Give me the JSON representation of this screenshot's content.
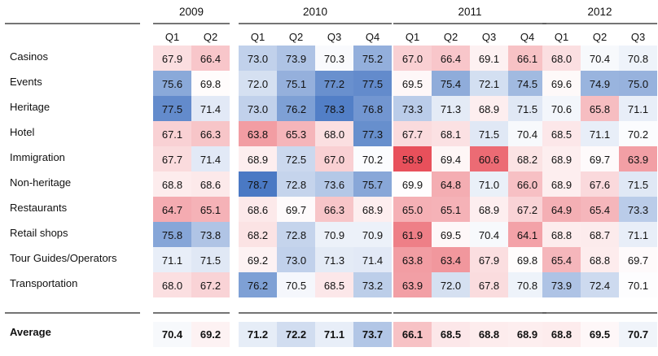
{
  "chart_data": {
    "type": "heatmap",
    "years": [
      {
        "label": "2009",
        "quarters": [
          "Q1",
          "Q2"
        ]
      },
      {
        "label": "2010",
        "quarters": [
          "Q1",
          "Q2",
          "Q3",
          "Q4"
        ]
      },
      {
        "label": "2011",
        "quarters": [
          "Q1",
          "Q2",
          "Q3",
          "Q4"
        ]
      },
      {
        "label": "2012",
        "quarters": [
          "Q1",
          "Q2",
          "Q3"
        ]
      }
    ],
    "rows": [
      {
        "label": "Casinos",
        "values": [
          67.9,
          66.4,
          73.0,
          73.9,
          70.3,
          75.2,
          67.0,
          66.4,
          69.1,
          66.1,
          68.0,
          70.4,
          70.8
        ]
      },
      {
        "label": "Events",
        "values": [
          75.6,
          69.8,
          72.0,
          75.1,
          77.2,
          77.5,
          69.5,
          75.4,
          72.1,
          74.5,
          69.6,
          74.9,
          75.0
        ]
      },
      {
        "label": "Heritage",
        "values": [
          77.5,
          71.4,
          73.0,
          76.2,
          78.3,
          76.8,
          73.3,
          71.3,
          68.9,
          71.5,
          70.6,
          65.8,
          71.1
        ]
      },
      {
        "label": "Hotel",
        "values": [
          67.1,
          66.3,
          63.8,
          65.3,
          68.0,
          77.3,
          67.7,
          68.1,
          71.5,
          70.4,
          68.5,
          71.1,
          70.2
        ]
      },
      {
        "label": "Immigration",
        "values": [
          67.7,
          71.4,
          68.9,
          72.5,
          67.0,
          70.2,
          58.9,
          69.4,
          60.6,
          68.2,
          68.9,
          69.7,
          63.9
        ]
      },
      {
        "label": "Non-heritage",
        "values": [
          68.8,
          68.6,
          78.7,
          72.8,
          73.6,
          75.7,
          69.9,
          64.8,
          71.0,
          66.0,
          68.9,
          67.6,
          71.5
        ]
      },
      {
        "label": "Restaurants",
        "values": [
          64.7,
          65.1,
          68.6,
          69.7,
          66.3,
          68.9,
          65.0,
          65.1,
          68.9,
          67.2,
          64.9,
          65.4,
          73.3
        ]
      },
      {
        "label": "Retail shops",
        "values": [
          75.8,
          73.8,
          68.2,
          72.8,
          70.9,
          70.9,
          61.9,
          69.5,
          70.4,
          64.1,
          68.8,
          68.7,
          71.1
        ]
      },
      {
        "label": "Tour Guides/Operators",
        "values": [
          71.1,
          71.5,
          69.2,
          73.0,
          71.3,
          71.4,
          63.8,
          63.4,
          67.9,
          69.8,
          65.4,
          68.8,
          69.7
        ]
      },
      {
        "label": "Transportation",
        "values": [
          68.0,
          67.2,
          76.2,
          70.5,
          68.5,
          73.2,
          63.9,
          72.0,
          67.8,
          70.8,
          73.9,
          72.4,
          70.1
        ]
      }
    ],
    "summary_row": {
      "label": "Average",
      "values": [
        70.4,
        69.2,
        71.2,
        72.2,
        71.1,
        73.7,
        66.1,
        68.5,
        68.8,
        68.9,
        68.8,
        69.5,
        70.7
      ]
    },
    "color_scale": {
      "low": "#e8505b",
      "mid": "#ffffff",
      "high": "#4a79c4",
      "center_value": 70.0
    }
  }
}
